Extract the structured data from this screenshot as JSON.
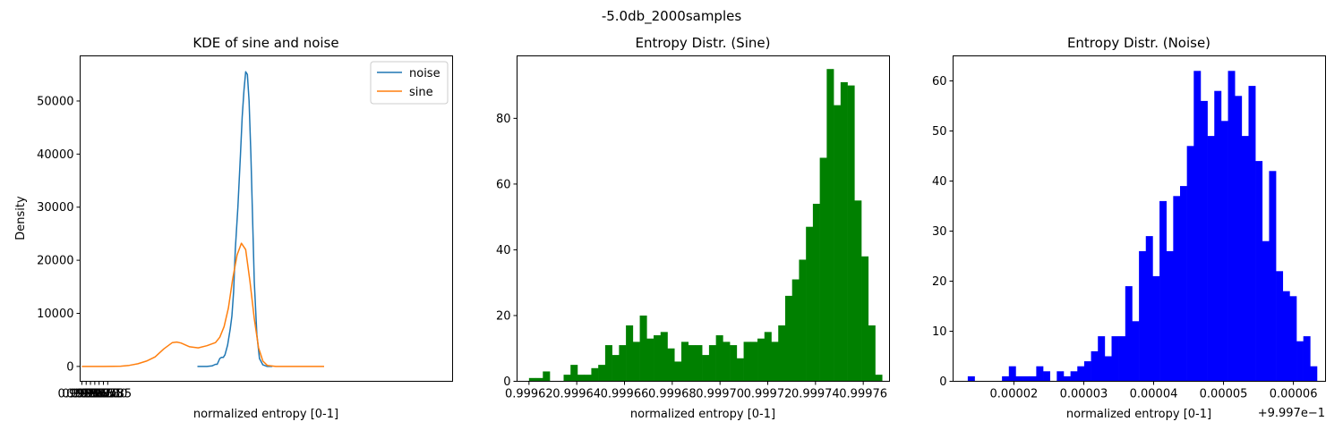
{
  "suptitle": "-5.0db_2000samples",
  "charts": [
    {
      "type": "line",
      "title": "KDE of sine and noise",
      "xlabel": "normalized entropy [0-1]",
      "ylabel": "Density",
      "xlim": [
        0.99553,
        0.99985
      ],
      "ylim": [
        -2800,
        58500
      ],
      "xticks": [
        0.99555,
        0.9956,
        0.99565,
        0.9957,
        0.99575,
        0.9958,
        0.99585
      ],
      "xtick_labels": [
        "0.99555",
        "0.99560",
        "0.99565",
        "0.99570",
        "0.99575",
        "0.99580",
        "0.99585"
      ],
      "yticks": [
        0,
        10000,
        20000,
        30000,
        40000,
        50000
      ],
      "ytick_labels": [
        "0",
        "10000",
        "20000",
        "30000",
        "40000",
        "50000"
      ],
      "legend": "top-right",
      "series": [
        {
          "name": "noise",
          "color": "#1f77b4",
          "x": [
            0.99689,
            0.997,
            0.99706,
            0.9971,
            0.99712,
            0.99715,
            0.99717,
            0.99719,
            0.99721,
            0.99724,
            0.99727,
            0.99729,
            0.99731,
            0.99733,
            0.99736,
            0.99739,
            0.99741,
            0.99743,
            0.99745,
            0.99747,
            0.99749,
            0.99751,
            0.99753,
            0.99755,
            0.99758,
            0.99761,
            0.99765,
            0.9977,
            0.99776
          ],
          "y": [
            0,
            0,
            100,
            400,
            400,
            1500,
            1700,
            1700,
            2200,
            4000,
            7000,
            9500,
            14000,
            22000,
            30000,
            40000,
            47000,
            52000,
            55500,
            55000,
            50000,
            40000,
            28000,
            16000,
            6000,
            1500,
            300,
            0,
            0
          ]
        },
        {
          "name": "sine",
          "color": "#ff7f0e",
          "x": [
            0.99555,
            0.9958,
            0.996,
            0.9961,
            0.9962,
            0.9963,
            0.9964,
            0.9965,
            0.9966,
            0.99665,
            0.9967,
            0.9968,
            0.9969,
            0.997,
            0.9971,
            0.99715,
            0.9972,
            0.99725,
            0.9973,
            0.99735,
            0.9974,
            0.99745,
            0.9975,
            0.99755,
            0.9976,
            0.99765,
            0.9977,
            0.9978,
            0.998,
            0.9982,
            0.99836
          ],
          "y": [
            0,
            0,
            50,
            200,
            500,
            1000,
            1800,
            3300,
            4500,
            4600,
            4400,
            3700,
            3500,
            3900,
            4500,
            5500,
            7500,
            11000,
            16500,
            21000,
            23200,
            22000,
            16000,
            9000,
            3500,
            1000,
            200,
            0,
            0,
            0,
            0
          ]
        }
      ]
    },
    {
      "type": "bar",
      "title": "Entropy Distr. (Sine)",
      "xlabel": "normalized entropy [0-1]",
      "ylabel": "",
      "color": "#008000",
      "xlim": [
        0.999615,
        0.999771
      ],
      "ylim": [
        0,
        99
      ],
      "bin_start": 0.99962,
      "bin_width": 2.9e-06,
      "xticks": [
        0.99962,
        0.99964,
        0.99966,
        0.99968,
        0.9997,
        0.99972,
        0.99974,
        0.99976
      ],
      "xtick_labels": [
        "0.99962",
        "0.99964",
        "0.99966",
        "0.99968",
        "0.99970",
        "0.99972",
        "0.99974",
        "0.99976"
      ],
      "yticks": [
        0,
        20,
        40,
        60,
        80
      ],
      "ytick_labels": [
        "0",
        "20",
        "40",
        "60",
        "80"
      ],
      "values": [
        1,
        1,
        3,
        0,
        0,
        2,
        5,
        2,
        2,
        4,
        5,
        11,
        8,
        11,
        17,
        12,
        20,
        13,
        14,
        15,
        10,
        6,
        12,
        11,
        11,
        8,
        11,
        14,
        12,
        11,
        7,
        12,
        12,
        13,
        15,
        12,
        17,
        26,
        31,
        37,
        47,
        54,
        68,
        95,
        84,
        91,
        90,
        55,
        38,
        17,
        2
      ]
    },
    {
      "type": "bar",
      "title": "Entropy Distr. (Noise)",
      "xlabel": "normalized entropy [0-1]",
      "ylabel": "",
      "color": "#0000ff",
      "offset_label": "+9.997e−1",
      "xlim": [
        1.13e-05,
        6.46e-05
      ],
      "ylim": [
        0,
        65
      ],
      "bin_start": 1.34e-05,
      "bin_width": 9.8e-07,
      "xticks": [
        2e-05,
        3e-05,
        4e-05,
        5e-05,
        6e-05
      ],
      "xtick_labels": [
        "0.00002",
        "0.00003",
        "0.00004",
        "0.00005",
        "0.00006"
      ],
      "yticks": [
        0,
        10,
        20,
        30,
        40,
        50,
        60
      ],
      "ytick_labels": [
        "0",
        "10",
        "20",
        "30",
        "40",
        "50",
        "60"
      ],
      "values": [
        1,
        0,
        0,
        0,
        0,
        1,
        3,
        1,
        1,
        1,
        3,
        2,
        0,
        2,
        1,
        2,
        3,
        4,
        6,
        9,
        5,
        9,
        9,
        19,
        12,
        26,
        29,
        21,
        36,
        26,
        37,
        39,
        47,
        62,
        56,
        49,
        58,
        52,
        62,
        57,
        49,
        59,
        44,
        28,
        42,
        22,
        18,
        17,
        8,
        9,
        3
      ]
    }
  ]
}
